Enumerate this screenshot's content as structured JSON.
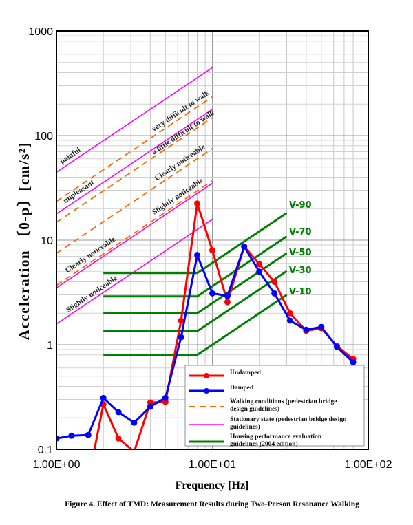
{
  "chart_data": {
    "type": "line",
    "title": "Figure 4. Effect of TMD: Measurement Results during Two-Person Resonance Walking",
    "xlabel": "Frequency [Hz]",
    "ylabel": "Acceleration 〔0-p〕[cm/s²]",
    "xscale": "log",
    "yscale": "log",
    "xlim": [
      1,
      100
    ],
    "ylim": [
      0.1,
      1000
    ],
    "x_tick_labels": [
      "1.00E+00",
      "1.00E+01",
      "1.00E+02"
    ],
    "y_tick_labels": [
      "0.1",
      "1",
      "10",
      "100",
      "1000"
    ],
    "grid": true,
    "legend_position": "bottom-right",
    "series": [
      {
        "name": "Undamped",
        "color": "#ff0000",
        "x": [
          1.6,
          2.0,
          2.5,
          3.15,
          4.0,
          5.0,
          6.3,
          8.0,
          10,
          12.5,
          16,
          20,
          25,
          31.5,
          40,
          50,
          63,
          80
        ],
        "y": [
          0.05,
          0.27,
          0.127,
          0.095,
          0.28,
          0.284,
          1.7,
          22.4,
          8.0,
          2.56,
          8.7,
          5.9,
          4.0,
          2.0,
          1.36,
          1.44,
          0.97,
          0.73
        ]
      },
      {
        "name": "Damped",
        "color": "#0000ff",
        "x": [
          1.0,
          1.25,
          1.6,
          2.0,
          2.5,
          3.15,
          4.0,
          5.0,
          6.3,
          8.0,
          10,
          12.5,
          16,
          20,
          25,
          31.5,
          40,
          50,
          63,
          80
        ],
        "y": [
          0.127,
          0.135,
          0.137,
          0.31,
          0.227,
          0.18,
          0.256,
          0.31,
          1.18,
          7.2,
          3.1,
          2.93,
          8.7,
          5.0,
          3.1,
          1.7,
          1.39,
          1.48,
          0.95,
          0.68
        ]
      }
    ],
    "legend": [
      {
        "label": "Undamped",
        "style": "red-marker"
      },
      {
        "label": "Damped",
        "style": "blue-marker"
      },
      {
        "label": "Walking conditions (pedestrian bridge design guidelines)",
        "line1": "Walking conditions (pedestrian bridge",
        "line2": "design guidelines)",
        "style": "orange-dash"
      },
      {
        "label": "Stationary state (pedestrian bridge design guidelines)",
        "line1": "Stationary state (pedestrian bridge design",
        "line2": "guidelines)",
        "style": "magenta"
      },
      {
        "label": "Housing performance evaluation guidelines (2004 edition)",
        "line1": "Housing performance evaluation",
        "line2": "guidelines (2004 edition)",
        "style": "green"
      }
    ],
    "stationary_lines": {
      "color": "#ff00ff",
      "x": [
        1,
        10
      ],
      "levels_at_1Hz": [
        44.6,
        17.8,
        3.5,
        1.58
      ]
    },
    "walking_lines": {
      "color": "#ff6600",
      "x": [
        1,
        10
      ],
      "levels_at_1Hz": [
        23.5,
        14.8,
        7.5,
        3.7
      ]
    },
    "housing_lines": {
      "color": "#008000",
      "flat_from": 2,
      "knee": 8,
      "end": 30,
      "levels": [
        {
          "name": "V-90",
          "value": 4.85
        },
        {
          "name": "V-70",
          "value": 2.9
        },
        {
          "name": "V-50",
          "value": 2.0
        },
        {
          "name": "V-30",
          "value": 1.35
        },
        {
          "name": "V-10",
          "value": 0.8
        }
      ]
    },
    "zone_labels": [
      "painful",
      "unpleasant",
      "very difficult to walk",
      "a little difficult to walk",
      "Clearly noticeable",
      "Slightly noticeable",
      "Clearly noticeable",
      "Slightly noticeable"
    ],
    "colors": {
      "undamped": "#ff0000",
      "damped": "#0000ff",
      "walking": "#ff6600",
      "stationary": "#ff00ff",
      "housing": "#008000"
    }
  }
}
